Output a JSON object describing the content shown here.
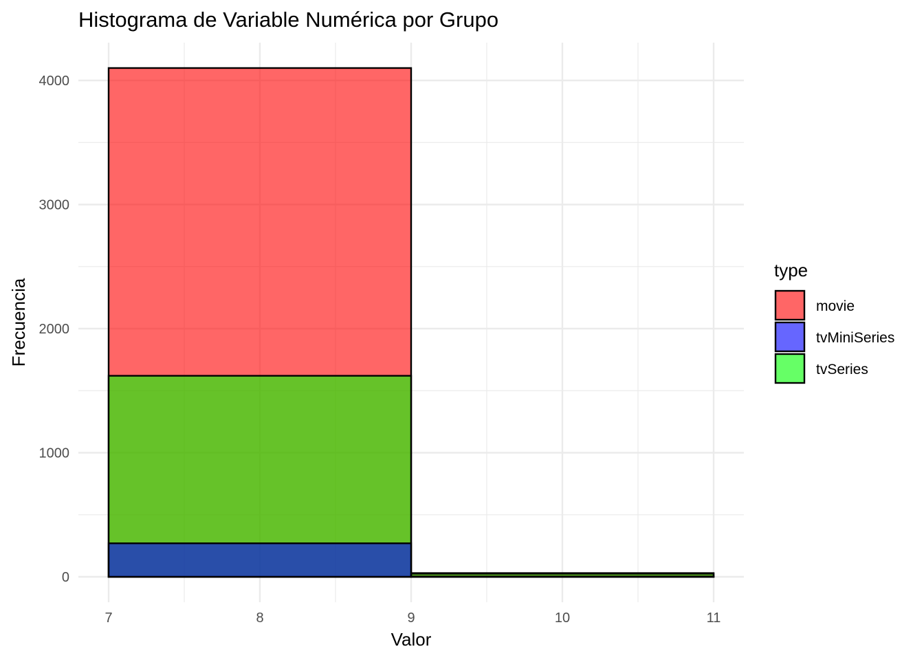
{
  "chart_data": {
    "type": "bar",
    "title": "Histograma de Variable Numérica por Grupo",
    "xlabel": "Valor",
    "ylabel": "Frecuencia",
    "xlim": [
      7,
      11
    ],
    "ylim": [
      0,
      4100
    ],
    "x_ticks": [
      7,
      8,
      9,
      10,
      11
    ],
    "y_ticks": [
      0,
      1000,
      2000,
      3000,
      4000
    ],
    "grid": true,
    "legend": {
      "title": "type",
      "placement": "right",
      "entries": [
        {
          "name": "movie",
          "color": "#ff0000"
        },
        {
          "name": "tvMiniSeries",
          "color": "#0000ff"
        },
        {
          "name": "tvSeries",
          "color": "#00ff00"
        }
      ]
    },
    "bins": [
      {
        "start": 7,
        "end": 9
      },
      {
        "start": 9,
        "end": 11
      }
    ],
    "series": [
      {
        "name": "movie",
        "color": "#ff0000",
        "values": [
          4100,
          30
        ]
      },
      {
        "name": "tvSeries",
        "color": "#00ff00",
        "values": [
          1620,
          25
        ]
      },
      {
        "name": "tvMiniSeries",
        "color": "#0000ff",
        "values": [
          270,
          3
        ]
      }
    ],
    "fill_opacity": 0.6,
    "outline_color": "#000000"
  }
}
